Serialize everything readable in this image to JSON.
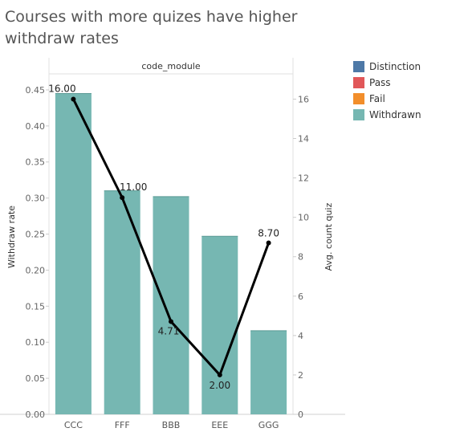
{
  "title": "Courses with more quizes have higher withdraw rates",
  "colors": {
    "distinction": "#4e79a7",
    "pass": "#e15759",
    "fail": "#f28e2b",
    "withdrawn": "#76b7b2",
    "line": "#000000"
  },
  "chart_data": {
    "type": "bar",
    "title": "Courses with more quizes have higher withdraw rates",
    "header_label": "code_module",
    "xlabel": "",
    "ylabel": "Withdraw rate",
    "y2label": "Avg. count quiz",
    "categories": [
      "CCC",
      "FFF",
      "BBB",
      "EEE",
      "GGG"
    ],
    "ylim": [
      0,
      0.47
    ],
    "y2lim": [
      0,
      17.2
    ],
    "yticks": [
      "0.00",
      "0.05",
      "0.10",
      "0.15",
      "0.20",
      "0.25",
      "0.30",
      "0.35",
      "0.40",
      "0.45"
    ],
    "y2ticks": [
      "0",
      "2",
      "4",
      "6",
      "8",
      "10",
      "12",
      "14",
      "16"
    ],
    "series": [
      {
        "name": "Withdrawn",
        "type": "bar",
        "axis": "left",
        "values": [
          0.445,
          0.31,
          0.302,
          0.247,
          0.116
        ]
      },
      {
        "type": "line",
        "axis": "right",
        "values": [
          16.0,
          11.0,
          4.71,
          2.0,
          8.7
        ],
        "labels": [
          "16.00",
          "11.00",
          "4.71",
          "2.00",
          "8.70"
        ]
      }
    ],
    "legend": {
      "position": "right",
      "items": [
        {
          "label": "Distinction",
          "color": "#4e79a7"
        },
        {
          "label": "Pass",
          "color": "#e15759"
        },
        {
          "label": "Fail",
          "color": "#f28e2b"
        },
        {
          "label": "Withdrawn",
          "color": "#76b7b2"
        }
      ]
    },
    "grid": false
  }
}
